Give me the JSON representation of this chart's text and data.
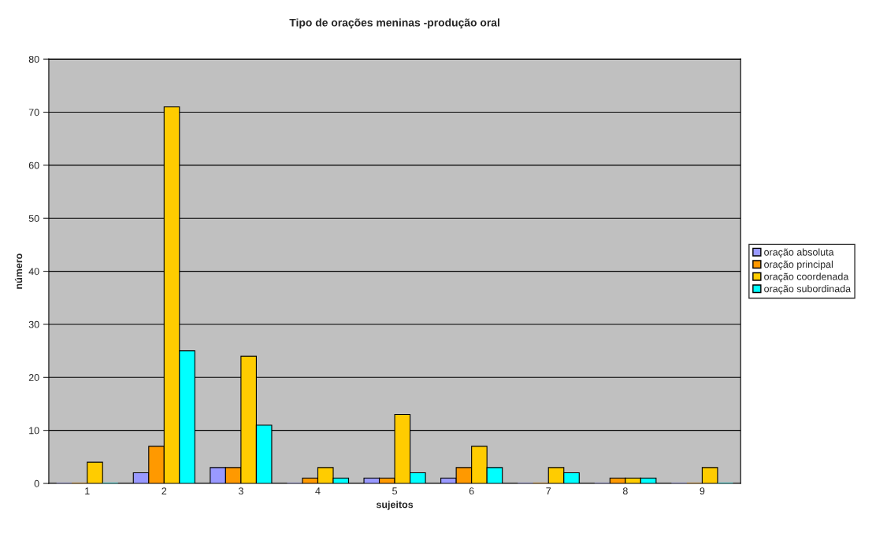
{
  "chart_data": {
    "type": "bar",
    "title": "Tipo de orações meninas -produção oral",
    "xlabel": "sujeitos",
    "ylabel": "número",
    "categories": [
      "1",
      "2",
      "3",
      "4",
      "5",
      "6",
      "7",
      "8",
      "9"
    ],
    "series": [
      {
        "name": "oração absoluta",
        "color": "#9999ff",
        "values": [
          0,
          2,
          3,
          0,
          1,
          1,
          0,
          0,
          0
        ]
      },
      {
        "name": "oração principal",
        "color": "#ff9900",
        "values": [
          0,
          7,
          3,
          1,
          1,
          3,
          0,
          1,
          0
        ]
      },
      {
        "name": "oração coordenada",
        "color": "#ffcc00",
        "values": [
          4,
          71,
          24,
          3,
          13,
          7,
          3,
          1,
          3
        ]
      },
      {
        "name": "oração subordinada",
        "color": "#00ffff",
        "values": [
          0,
          25,
          11,
          1,
          2,
          3,
          2,
          1,
          0
        ]
      }
    ],
    "ylim": [
      0,
      80
    ],
    "yticks": [
      0,
      10,
      20,
      30,
      40,
      50,
      60,
      70,
      80
    ],
    "grid": "y",
    "legend": "right"
  }
}
